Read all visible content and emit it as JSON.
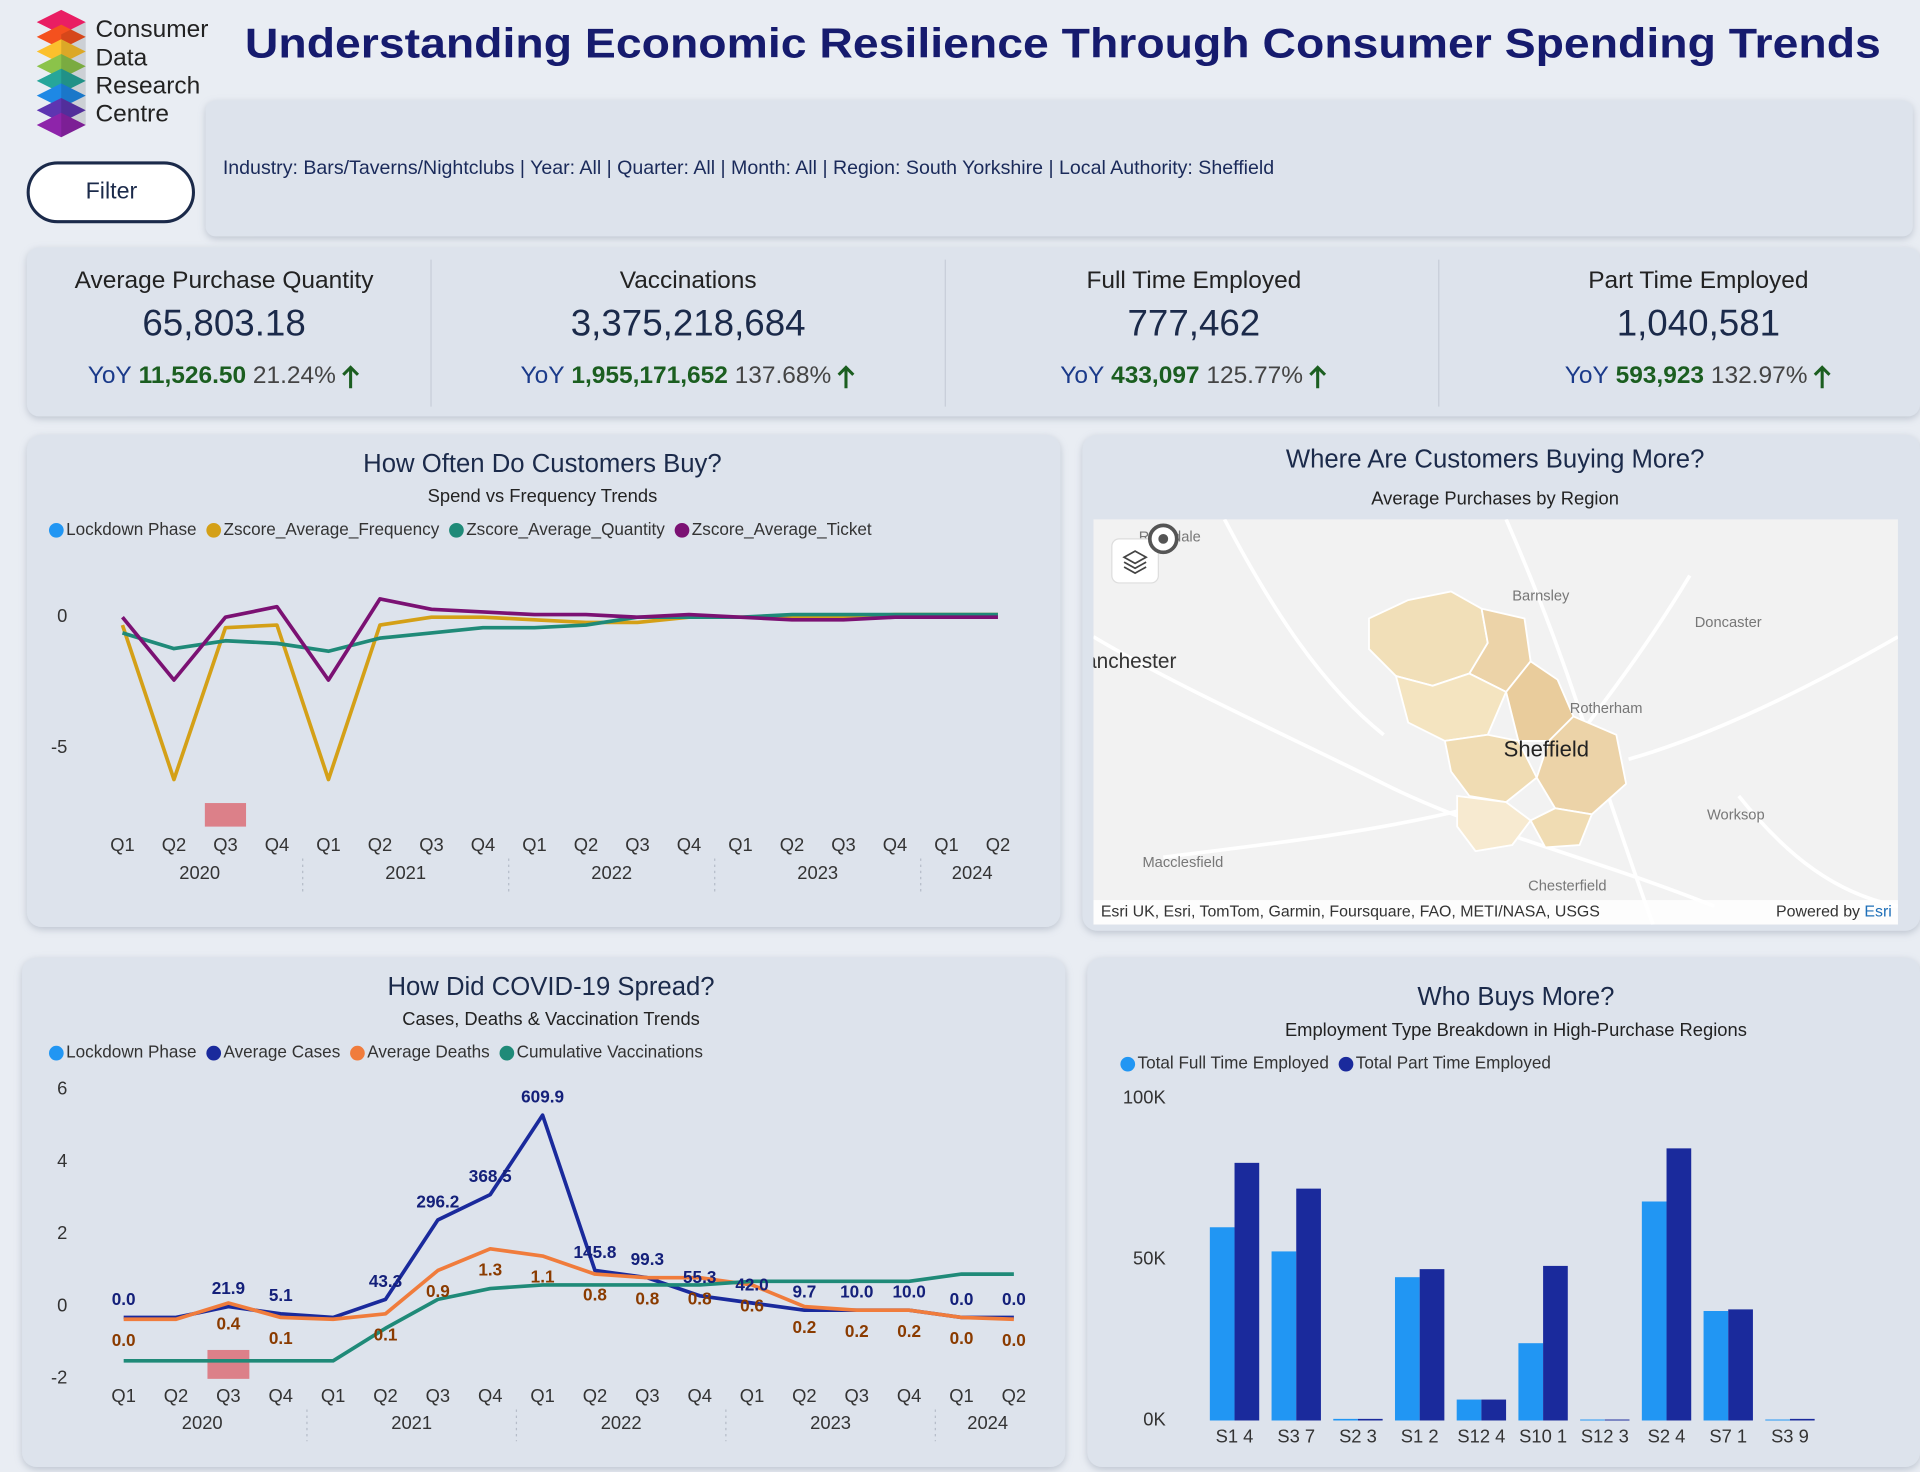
{
  "header": {
    "logo": [
      "Consumer",
      "Data",
      "Research",
      "Centre"
    ],
    "title": "Understanding Economic Resilience Through Consumer Spending Trends",
    "filter_button": "Filter",
    "filter_text": "Industry: Bars/Taverns/Nightclubs | Year: All | Quarter: All | Month: All | Region: South Yorkshire | Local Authority: Sheffield"
  },
  "kpis": [
    {
      "label": "Average Purchase Quantity",
      "value": "65,803.18",
      "yoy_label": "YoY",
      "yoy_value": "11,526.50",
      "yoy_percent": "21.24%"
    },
    {
      "label": "Vaccinations",
      "value": "3,375,218,684",
      "yoy_label": "YoY",
      "yoy_value": "1,955,171,652",
      "yoy_percent": "137.68%"
    },
    {
      "label": "Full Time Employed",
      "value": "777,462",
      "yoy_label": "YoY",
      "yoy_value": "433,097",
      "yoy_percent": "125.77%"
    },
    {
      "label": "Part Time Employed",
      "value": "1,040,581",
      "yoy_label": "YoY",
      "yoy_value": "593,923",
      "yoy_percent": "132.97%"
    }
  ],
  "map": {
    "title": "Where Are Customers Buying More?",
    "subtitle": "Average Purchases by Region",
    "places": [
      "Rochdale",
      "Barnsley",
      "Doncaster",
      "Manchester",
      "Rotherham",
      "Sheffield",
      "Worksop",
      "Macclesfield",
      "Chesterfield"
    ],
    "attribution": "Esri UK, Esri, TomTom, Garmin, Foursquare, FAO, METI/NASA, USGS",
    "powered_by": "Powered by",
    "provider": "Esri"
  },
  "chart_data": [
    {
      "type": "line",
      "title": "How Often Do Customers Buy?",
      "subtitle": "Spend vs Frequency Trends",
      "grid": false,
      "categories": [
        {
          "quarter": "Q1",
          "year": "2020"
        },
        {
          "quarter": "Q2",
          "year": "2020"
        },
        {
          "quarter": "Q3",
          "year": "2020"
        },
        {
          "quarter": "Q4",
          "year": "2020"
        },
        {
          "quarter": "Q1",
          "year": "2021"
        },
        {
          "quarter": "Q2",
          "year": "2021"
        },
        {
          "quarter": "Q3",
          "year": "2021"
        },
        {
          "quarter": "Q4",
          "year": "2021"
        },
        {
          "quarter": "Q1",
          "year": "2022"
        },
        {
          "quarter": "Q2",
          "year": "2022"
        },
        {
          "quarter": "Q3",
          "year": "2022"
        },
        {
          "quarter": "Q4",
          "year": "2022"
        },
        {
          "quarter": "Q1",
          "year": "2023"
        },
        {
          "quarter": "Q2",
          "year": "2023"
        },
        {
          "quarter": "Q3",
          "year": "2023"
        },
        {
          "quarter": "Q4",
          "year": "2023"
        },
        {
          "quarter": "Q1",
          "year": "2024"
        },
        {
          "quarter": "Q2",
          "year": "2024"
        }
      ],
      "ylim": [
        -8,
        1
      ],
      "yticks": [
        0,
        -5
      ],
      "y2lim": [
        0,
        10
      ],
      "series": [
        {
          "name": "Lockdown Phase",
          "type": "bar",
          "axis": "y2",
          "color": "#2196f3",
          "bar_color": "#dc8089",
          "values": [
            null,
            null,
            1,
            null,
            null,
            null,
            null,
            null,
            null,
            null,
            null,
            null,
            null,
            null,
            null,
            null,
            null,
            null
          ]
        },
        {
          "name": "Zscore_Average_Frequency",
          "color": "#d4a017",
          "values": [
            -0.3,
            -6.2,
            -0.4,
            -0.3,
            -6.2,
            -0.3,
            0.0,
            0.0,
            -0.1,
            -0.2,
            -0.2,
            0.0,
            0.0,
            0.0,
            0.0,
            0.1,
            0.1,
            0.1
          ]
        },
        {
          "name": "Zscore_Average_Quantity",
          "color": "#1f8a78",
          "values": [
            -0.6,
            -1.2,
            -0.9,
            -1.0,
            -1.3,
            -0.8,
            -0.6,
            -0.4,
            -0.4,
            -0.3,
            0.0,
            0.0,
            0.0,
            0.1,
            0.1,
            0.1,
            0.1,
            0.1
          ]
        },
        {
          "name": "Zscore_Average_Ticket",
          "color": "#7b1173",
          "values": [
            0.0,
            -2.4,
            0.0,
            0.4,
            -2.4,
            0.7,
            0.3,
            0.2,
            0.1,
            0.1,
            0.0,
            0.1,
            0.0,
            -0.1,
            -0.1,
            0.0,
            0.0,
            0.0
          ]
        }
      ]
    },
    {
      "type": "line",
      "title": "How Did COVID-19 Spread?",
      "subtitle": "Cases, Deaths & Vaccination Trends",
      "grid": false,
      "categories": [
        {
          "quarter": "Q1",
          "year": "2020"
        },
        {
          "quarter": "Q2",
          "year": "2020"
        },
        {
          "quarter": "Q3",
          "year": "2020"
        },
        {
          "quarter": "Q4",
          "year": "2020"
        },
        {
          "quarter": "Q1",
          "year": "2021"
        },
        {
          "quarter": "Q2",
          "year": "2021"
        },
        {
          "quarter": "Q3",
          "year": "2021"
        },
        {
          "quarter": "Q4",
          "year": "2021"
        },
        {
          "quarter": "Q1",
          "year": "2022"
        },
        {
          "quarter": "Q2",
          "year": "2022"
        },
        {
          "quarter": "Q3",
          "year": "2022"
        },
        {
          "quarter": "Q4",
          "year": "2022"
        },
        {
          "quarter": "Q1",
          "year": "2023"
        },
        {
          "quarter": "Q2",
          "year": "2023"
        },
        {
          "quarter": "Q3",
          "year": "2023"
        },
        {
          "quarter": "Q4",
          "year": "2023"
        },
        {
          "quarter": "Q1",
          "year": "2024"
        },
        {
          "quarter": "Q2",
          "year": "2024"
        }
      ],
      "ylim": [
        -2,
        6
      ],
      "yticks": [
        -2,
        0,
        2,
        4,
        6
      ],
      "y2lim": [
        0,
        10
      ],
      "series": [
        {
          "name": "Lockdown Phase",
          "type": "bar",
          "axis": "y2",
          "color": "#2196f3",
          "bar_color": "#dc8089",
          "values": [
            null,
            null,
            1,
            null,
            null,
            null,
            null,
            null,
            null,
            null,
            null,
            null,
            null,
            null,
            null,
            null,
            null,
            null
          ]
        },
        {
          "name": "Average Cases",
          "color": "#1a2a9c",
          "label_color": "#14207a",
          "label_position": "above",
          "values": [
            -0.3,
            -0.3,
            0.0,
            -0.2,
            -0.3,
            0.2,
            2.4,
            3.1,
            5.3,
            1.0,
            0.8,
            0.3,
            0.1,
            -0.1,
            -0.1,
            -0.1,
            -0.3,
            -0.3
          ],
          "data_labels": [
            "0.0",
            null,
            "21.9",
            "5.1",
            null,
            "43.3",
            "296.2",
            "368.5",
            "609.9",
            "145.8",
            "99.3",
            "55.3",
            "42.0",
            "9.7",
            "10.0",
            "10.0",
            "0.0",
            "0.0"
          ]
        },
        {
          "name": "Average Deaths",
          "color": "#f07c3c",
          "label_color": "#8a3b00",
          "label_position": "below",
          "values": [
            -0.35,
            -0.35,
            0.1,
            -0.3,
            -0.35,
            -0.2,
            1.0,
            1.6,
            1.4,
            0.9,
            0.8,
            0.8,
            0.6,
            0.0,
            -0.1,
            -0.1,
            -0.3,
            -0.35
          ],
          "data_labels": [
            "0.0",
            null,
            "0.4",
            "0.1",
            null,
            "0.1",
            "0.9",
            "1.3",
            "1.1",
            "0.8",
            "0.8",
            "0.8",
            "0.6",
            "0.2",
            "0.2",
            "0.2",
            "0.0",
            "0.0"
          ]
        },
        {
          "name": "Cumulative Vaccinations",
          "color": "#1f8a78",
          "values": [
            -1.5,
            -1.5,
            -1.5,
            -1.5,
            -1.5,
            -0.6,
            0.2,
            0.5,
            0.6,
            0.6,
            0.6,
            0.6,
            0.7,
            0.7,
            0.7,
            0.7,
            0.9,
            0.9
          ]
        }
      ]
    },
    {
      "type": "bar",
      "title": "Who Buys More?",
      "subtitle": "Employment Type Breakdown in High-Purchase Regions",
      "grid": false,
      "categories": [
        "S1 4",
        "S3 7",
        "S2 3",
        "S1 2",
        "S12 4",
        "S10 1",
        "S12 3",
        "S2 4",
        "S7 1",
        "S3 9"
      ],
      "ylim": [
        0,
        100000
      ],
      "yticks": [
        {
          "value": 0,
          "label": "0K"
        },
        {
          "value": 50000,
          "label": "50K"
        },
        {
          "value": 100000,
          "label": "100K"
        }
      ],
      "series": [
        {
          "name": "Total Full Time Employed",
          "color": "#2196f3",
          "values": [
            60000,
            52500,
            500,
            44500,
            6500,
            24000,
            300,
            68000,
            34000,
            300
          ]
        },
        {
          "name": "Total Part Time Employed",
          "color": "#1a2a9c",
          "values": [
            80000,
            72000,
            500,
            47000,
            6500,
            48000,
            300,
            84500,
            34500,
            500
          ]
        }
      ]
    }
  ]
}
